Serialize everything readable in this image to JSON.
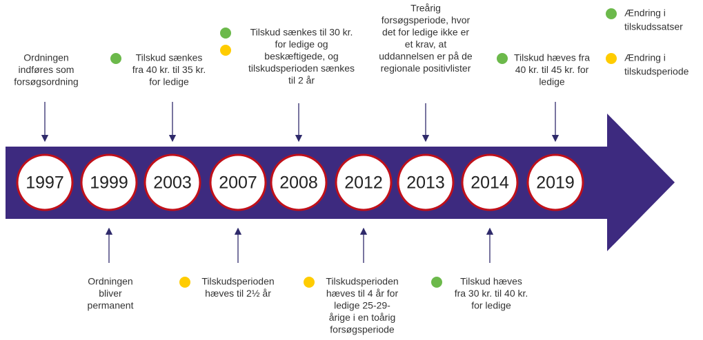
{
  "legend": [
    {
      "color": "#6cb94b",
      "text": [
        "Ændring i",
        "tilskudssatser"
      ]
    },
    {
      "color": "#ffcc00",
      "text": [
        "Ændring i",
        "tilskudsperiode"
      ]
    }
  ],
  "events": [
    {
      "year": "1997",
      "text": [
        "Ordningen",
        "indføres som",
        "forsøgsordning"
      ],
      "dots": []
    },
    {
      "year": "1999",
      "text": [
        "Ordningen",
        "bliver",
        "permanent"
      ],
      "dots": []
    },
    {
      "year": "2003",
      "text": [
        "Tilskud sænkes",
        "fra 40 kr. til 35 kr.",
        "for ledige"
      ],
      "dots": [
        "#6cb94b"
      ]
    },
    {
      "year": "2007",
      "text": [
        "Tilskudsperioden",
        "hæves til 2½ år"
      ],
      "dots": [
        "#ffcc00"
      ]
    },
    {
      "year": "2008",
      "text": [
        "Tilskud sænkes til 30 kr.",
        "for ledige og",
        "beskæftigede, og",
        "tilskudsperioden sænkes",
        "til 2 år"
      ],
      "dots": [
        "#6cb94b",
        "#ffcc00"
      ]
    },
    {
      "year": "2012",
      "text": [
        "Tilskudsperioden",
        "hæves til 4 år for",
        "ledige 25-29-",
        "årige i en toårig",
        "forsøgsperiode"
      ],
      "dots": [
        "#ffcc00"
      ]
    },
    {
      "year": "2013",
      "text": [
        "Treårig",
        "forsøgsperiode, hvor",
        "det for ledige ikke er",
        "et krav, at",
        "uddannelsen er på de",
        "regionale positivlister"
      ],
      "dots": []
    },
    {
      "year": "2014",
      "text": [
        "Tilskud hæves",
        "fra 30 kr. til 40 kr.",
        "for ledige"
      ],
      "dots": [
        "#6cb94b"
      ]
    },
    {
      "year": "2019",
      "text": [
        "Tilskud hæves fra",
        "40 kr. til 45 kr. for",
        "ledige"
      ],
      "dots": [
        "#6cb94b"
      ]
    }
  ]
}
